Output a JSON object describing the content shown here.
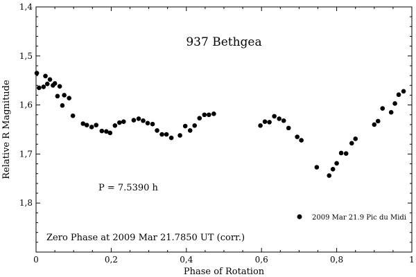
{
  "chart_data": {
    "type": "scatter",
    "title": "937 Bethgea",
    "xlabel": "Phase of Rotation",
    "ylabel": "Relative R Magnitude",
    "xlim": [
      0,
      1
    ],
    "ylim": [
      1.4,
      1.9
    ],
    "y_inverted": true,
    "x_ticks": [
      0,
      0.2,
      0.4,
      0.6,
      0.8,
      1
    ],
    "x_tick_labels": [
      "0",
      "0,2",
      "0,4",
      "0,6",
      "0,8",
      "1"
    ],
    "y_ticks": [
      1.4,
      1.5,
      1.6,
      1.7,
      1.8
    ],
    "y_tick_labels": [
      "1,4",
      "1,5",
      "1,6",
      "1,7",
      "1,8"
    ],
    "grid": false,
    "legend_position": "bottom-right",
    "annotations": {
      "period": "P = 7.5390 h",
      "zero_phase": "Zero Phase at 2009 Mar 21.7850 UT (corr.)"
    },
    "series": [
      {
        "name": "2009 Mar 21.9 Pic du Midi",
        "color": "#000000",
        "points": [
          [
            0.002,
            1.535
          ],
          [
            0.008,
            1.565
          ],
          [
            0.02,
            1.563
          ],
          [
            0.025,
            1.541
          ],
          [
            0.03,
            1.557
          ],
          [
            0.037,
            1.548
          ],
          [
            0.045,
            1.56
          ],
          [
            0.05,
            1.556
          ],
          [
            0.057,
            1.582
          ],
          [
            0.063,
            1.562
          ],
          [
            0.07,
            1.601
          ],
          [
            0.075,
            1.58
          ],
          [
            0.088,
            1.586
          ],
          [
            0.098,
            1.622
          ],
          [
            0.125,
            1.638
          ],
          [
            0.135,
            1.641
          ],
          [
            0.148,
            1.645
          ],
          [
            0.16,
            1.641
          ],
          [
            0.175,
            1.653
          ],
          [
            0.187,
            1.654
          ],
          [
            0.197,
            1.657
          ],
          [
            0.21,
            1.642
          ],
          [
            0.222,
            1.636
          ],
          [
            0.233,
            1.634
          ],
          [
            0.26,
            1.631
          ],
          [
            0.273,
            1.628
          ],
          [
            0.285,
            1.632
          ],
          [
            0.297,
            1.637
          ],
          [
            0.31,
            1.639
          ],
          [
            0.322,
            1.652
          ],
          [
            0.335,
            1.66
          ],
          [
            0.347,
            1.66
          ],
          [
            0.36,
            1.667
          ],
          [
            0.383,
            1.662
          ],
          [
            0.397,
            1.643
          ],
          [
            0.41,
            1.652
          ],
          [
            0.422,
            1.642
          ],
          [
            0.435,
            1.627
          ],
          [
            0.448,
            1.62
          ],
          [
            0.46,
            1.62
          ],
          [
            0.473,
            1.618
          ],
          [
            0.597,
            1.642
          ],
          [
            0.609,
            1.634
          ],
          [
            0.621,
            1.635
          ],
          [
            0.634,
            1.623
          ],
          [
            0.647,
            1.628
          ],
          [
            0.659,
            1.632
          ],
          [
            0.672,
            1.647
          ],
          [
            0.695,
            1.665
          ],
          [
            0.706,
            1.672
          ],
          [
            0.747,
            1.727
          ],
          [
            0.78,
            1.744
          ],
          [
            0.79,
            1.731
          ],
          [
            0.8,
            1.719
          ],
          [
            0.812,
            1.698
          ],
          [
            0.825,
            1.699
          ],
          [
            0.84,
            1.678
          ],
          [
            0.85,
            1.669
          ],
          [
            0.9,
            1.64
          ],
          [
            0.91,
            1.633
          ],
          [
            0.922,
            1.607
          ],
          [
            0.945,
            1.615
          ],
          [
            0.955,
            1.597
          ],
          [
            0.965,
            1.579
          ],
          [
            0.978,
            1.572
          ]
        ]
      }
    ]
  }
}
